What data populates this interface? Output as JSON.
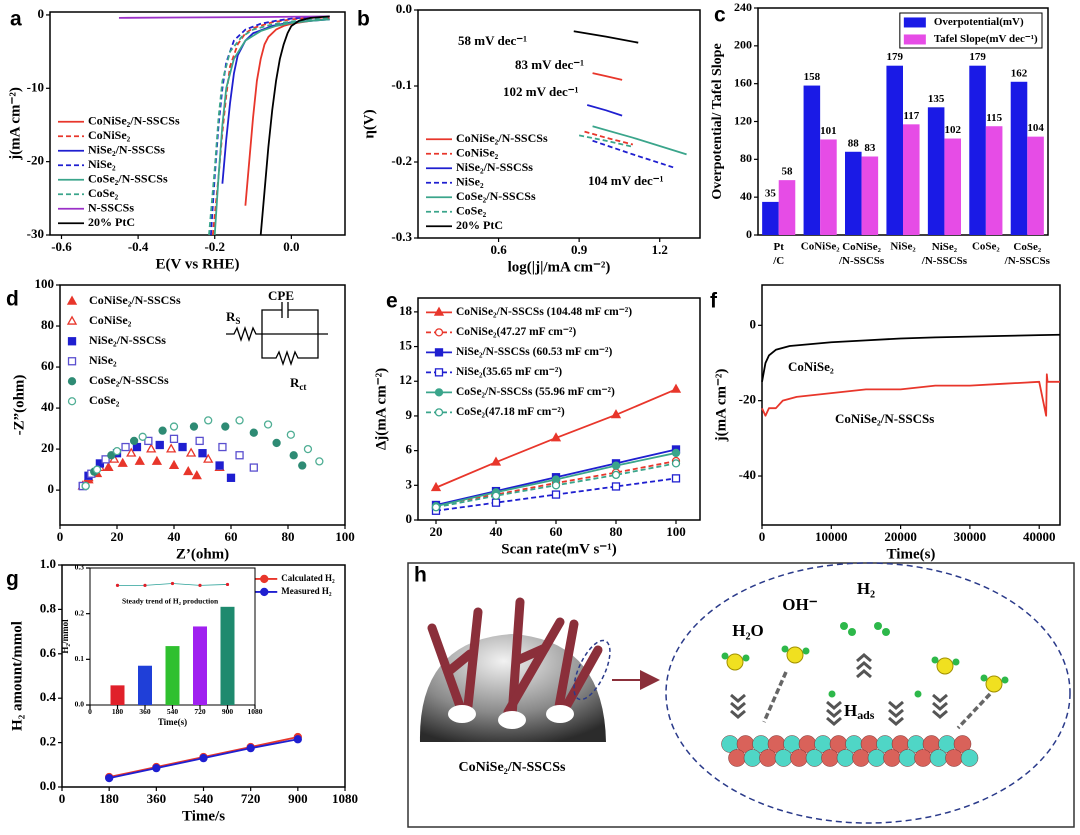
{
  "chart_data": [
    {
      "panel": "a",
      "type": "line",
      "xlabel": "E(V vs RHE)",
      "ylabel": "j(mA cm⁻²)",
      "xlim": [
        -0.63,
        0.14
      ],
      "ylim": [
        -30,
        0.4
      ],
      "xticks": [
        -0.6,
        -0.4,
        -0.2,
        {
          "value": 0,
          "label": "0.0"
        }
      ],
      "yticks": [
        -30,
        -20,
        -10,
        0
      ],
      "legend": "lower left",
      "series": [
        {
          "name": "CoNiSe₂/N-SSCSs",
          "color": "#e8362b",
          "dash": false,
          "x": [
            -0.12,
            -0.11,
            -0.1,
            -0.09,
            -0.08,
            -0.07,
            -0.06,
            -0.04,
            -0.02,
            0,
            0.05,
            0.1
          ],
          "values": [
            -26,
            -20,
            -14,
            -9,
            -6,
            -4,
            -3,
            -2,
            -1.5,
            -1.2,
            -0.8,
            -0.5
          ]
        },
        {
          "name": "CoNiSe₂",
          "color": "#e8362b",
          "dash": true,
          "x": [
            -0.205,
            -0.19,
            -0.18,
            -0.17,
            -0.16,
            -0.14,
            -0.12,
            -0.1,
            -0.05,
            0,
            0.05,
            0.1
          ],
          "values": [
            -30,
            -22,
            -16,
            -11,
            -7,
            -4,
            -2.5,
            -1.8,
            -1,
            -0.6,
            -0.4,
            -0.3
          ]
        },
        {
          "name": "NiSe₂/N-SSCSs",
          "color": "#1f1fd0",
          "dash": false,
          "x": [
            -0.18,
            -0.17,
            -0.16,
            -0.15,
            -0.14,
            -0.12,
            -0.1,
            -0.05,
            0,
            0.05,
            0.1
          ],
          "values": [
            -23,
            -17,
            -12,
            -8,
            -5.5,
            -3.5,
            -2.5,
            -1.5,
            -1,
            -0.8,
            -0.6
          ]
        },
        {
          "name": "NiSe₂",
          "color": "#1f1fd0",
          "dash": true,
          "x": [
            -0.21,
            -0.2,
            -0.19,
            -0.18,
            -0.17,
            -0.15,
            -0.12,
            -0.08,
            -0.04,
            0,
            0.05,
            0.1
          ],
          "values": [
            -30,
            -22,
            -15,
            -10,
            -6.5,
            -3.5,
            -2,
            -1.2,
            -0.8,
            -0.5,
            -0.3,
            -0.2
          ]
        },
        {
          "name": "CoSe₂/N-SSCSs",
          "color": "#3aa58b",
          "dash": false,
          "x": [
            -0.2,
            -0.19,
            -0.18,
            -0.17,
            -0.15,
            -0.12,
            -0.08,
            -0.04,
            0,
            0.05,
            0.1
          ],
          "values": [
            -30,
            -22,
            -15,
            -10,
            -6,
            -3.5,
            -2.2,
            -1.5,
            -1.1,
            -0.8,
            -0.6
          ]
        },
        {
          "name": "CoSe₂",
          "color": "#3aa58b",
          "dash": true,
          "x": [
            -0.215,
            -0.2,
            -0.19,
            -0.18,
            -0.16,
            -0.13,
            -0.1,
            -0.05,
            0,
            0.05,
            0.1
          ],
          "values": [
            -30,
            -21,
            -14,
            -9,
            -5,
            -3,
            -2,
            -1.3,
            -0.9,
            -0.6,
            -0.4
          ]
        },
        {
          "name": "N-SSCSs",
          "color": "#9b30c8",
          "dash": false,
          "x": [
            -0.45,
            -0.3,
            -0.1,
            0,
            0.1
          ],
          "values": [
            -0.4,
            -0.35,
            -0.3,
            -0.25,
            -0.2
          ]
        },
        {
          "name": "20% PtC",
          "color": "#000000",
          "dash": false,
          "x": [
            -0.08,
            -0.07,
            -0.06,
            -0.05,
            -0.04,
            -0.03,
            -0.02,
            -0.01,
            0,
            0.02,
            0.05,
            0.1
          ],
          "values": [
            -30,
            -24,
            -18,
            -13,
            -9,
            -6,
            -4,
            -2.5,
            -1.5,
            -0.8,
            -0.4,
            -0.2
          ]
        }
      ]
    },
    {
      "panel": "b",
      "type": "line",
      "xlabel": "log(|j|/mA cm⁻²)",
      "ylabel": "η(V)",
      "xlim": [
        0.3,
        1.35
      ],
      "ylim": [
        -0.3,
        0
      ],
      "xticks": [
        0.6,
        0.9,
        1.2
      ],
      "yticks": [
        -0.3,
        -0.2,
        -0.1,
        {
          "value": 0,
          "label": "0.0"
        }
      ],
      "legend": "lower left",
      "annotations": [
        {
          "text": "58 mV dec⁻¹",
          "color": "#000000"
        },
        {
          "text": "83 mV dec⁻¹",
          "color": "#e8362b"
        },
        {
          "text": "102 mV dec⁻¹",
          "color": "#1f1fd0"
        },
        {
          "text": "104 mV dec⁻¹",
          "color": "#3aa58b"
        }
      ],
      "series": [
        {
          "name": "CoNiSe₂/N-SSCSs",
          "color": "#e8362b",
          "dash": false,
          "x": [
            0.95,
            1.0,
            1.06
          ],
          "values": [
            -0.083,
            -0.087,
            -0.092
          ]
        },
        {
          "name": "CoNiSe₂",
          "color": "#e8362b",
          "dash": true,
          "x": [
            0.92,
            1.0,
            1.1
          ],
          "values": [
            -0.16,
            -0.168,
            -0.177
          ]
        },
        {
          "name": "NiSe₂/N-SSCSs",
          "color": "#1f1fd0",
          "dash": false,
          "x": [
            0.93,
            1.0,
            1.06
          ],
          "values": [
            -0.125,
            -0.132,
            -0.139
          ]
        },
        {
          "name": "NiSe₂",
          "color": "#1f1fd0",
          "dash": true,
          "x": [
            0.95,
            1.1,
            1.25
          ],
          "values": [
            -0.172,
            -0.19,
            -0.207
          ]
        },
        {
          "name": "CoSe₂/N-SSCSs",
          "color": "#3aa58b",
          "dash": false,
          "x": [
            0.95,
            1.1,
            1.3
          ],
          "values": [
            -0.153,
            -0.168,
            -0.19
          ]
        },
        {
          "name": "CoSe₂",
          "color": "#3aa58b",
          "dash": true,
          "x": [
            0.9,
            1.0,
            1.1
          ],
          "values": [
            -0.165,
            -0.172,
            -0.18
          ]
        },
        {
          "name": "20% PtC",
          "color": "#000000",
          "dash": false,
          "x": [
            0.88,
            1.0,
            1.12
          ],
          "values": [
            -0.028,
            -0.035,
            -0.043
          ]
        }
      ]
    },
    {
      "panel": "c",
      "type": "bar",
      "ylabel": "Overpotential/ Tafel Slope",
      "categories": [
        "Pt/C",
        "CoNiSe₂",
        "CoNiSe₂/N-SSCSs",
        "NiSe₂",
        "NiSe₂/N-SSCSs",
        "CoSe₂",
        "CoSe₂/N-SSCSs"
      ],
      "ylim": [
        0,
        240
      ],
      "yticks": [
        0,
        40,
        80,
        120,
        160,
        200,
        240
      ],
      "legend": "upper right",
      "series": [
        {
          "name": "Overpotential(mV)",
          "color": "#1a1ae6",
          "values": [
            35,
            158,
            88,
            179,
            135,
            179,
            162
          ]
        },
        {
          "name": "Tafel Slope(mV dec⁻¹)",
          "color": "#e64ce6",
          "values": [
            58,
            101,
            83,
            117,
            102,
            115,
            104
          ]
        }
      ]
    },
    {
      "panel": "d",
      "type": "scatter",
      "xlabel": "Z’(ohm)",
      "ylabel": "-Z”(ohm)",
      "xlim": [
        0,
        100
      ],
      "ylim": [
        -17,
        100
      ],
      "xticks": [
        0,
        20,
        40,
        60,
        80,
        100
      ],
      "yticks": [
        0,
        20,
        40,
        60,
        80,
        100
      ],
      "legend": "upper left",
      "annotations": [
        {
          "text": "CPE",
          "color": "#000000"
        },
        {
          "text": "RS",
          "color": "#000000"
        },
        {
          "text": "Rct",
          "color": "#000000"
        }
      ],
      "series": [
        {
          "name": "CoNiSe₂/N-SSCSs",
          "color": "#e8362b",
          "marker": "triangle",
          "filled": true,
          "x": [
            8,
            10,
            13,
            17,
            22,
            28,
            34,
            40,
            45,
            48
          ],
          "values": [
            2,
            5,
            8,
            11,
            13,
            14,
            14,
            12,
            9,
            7
          ]
        },
        {
          "name": "CoNiSe₂",
          "color": "#e8362b",
          "marker": "triangle",
          "filled": false,
          "x": [
            8,
            10,
            14,
            19,
            25,
            32,
            39,
            46,
            52,
            56
          ],
          "values": [
            2,
            6,
            11,
            15,
            18,
            20,
            20,
            18,
            15,
            11
          ]
        },
        {
          "name": "NiSe₂/N-SSCSs",
          "color": "#1f1fd0",
          "marker": "square",
          "filled": true,
          "x": [
            8,
            10,
            14,
            20,
            27,
            35,
            43,
            50,
            56,
            60
          ],
          "values": [
            2,
            7,
            13,
            18,
            21,
            22,
            21,
            18,
            12,
            6
          ]
        },
        {
          "name": "NiSe₂",
          "color": "#5a4fcf",
          "marker": "square",
          "filled": false,
          "x": [
            8,
            11,
            16,
            23,
            31,
            40,
            49,
            57,
            63,
            68
          ],
          "values": [
            2,
            8,
            15,
            21,
            24,
            25,
            24,
            21,
            17,
            11
          ]
        },
        {
          "name": "CoSe₂/N-SSCSs",
          "color": "#2e8b74",
          "marker": "circle",
          "filled": true,
          "x": [
            9,
            12,
            18,
            26,
            36,
            47,
            58,
            68,
            76,
            82,
            85
          ],
          "values": [
            2,
            9,
            17,
            24,
            29,
            31,
            31,
            28,
            23,
            17,
            12
          ]
        },
        {
          "name": "CoSe₂",
          "color": "#4fae94",
          "marker": "circle",
          "filled": false,
          "x": [
            9,
            13,
            20,
            29,
            40,
            52,
            63,
            73,
            81,
            87,
            91
          ],
          "values": [
            2,
            10,
            19,
            26,
            31,
            34,
            34,
            32,
            27,
            20,
            14
          ]
        }
      ]
    },
    {
      "panel": "e",
      "type": "line",
      "xlabel": "Scan rate(mV s⁻¹)",
      "ylabel": "Δj(mA cm⁻²)",
      "xlim": [
        14,
        108
      ],
      "ylim": [
        0,
        19.2
      ],
      "xticks": [
        20,
        40,
        60,
        80,
        100
      ],
      "yticks": [
        0,
        3,
        6,
        9,
        12,
        15,
        18
      ],
      "legend": "upper left",
      "x": [
        20,
        40,
        60,
        80,
        100
      ],
      "series": [
        {
          "name": "CoNiSe₂/N-SSCSs (104.48 mF cm⁻²)",
          "color": "#e8362b",
          "dash": false,
          "marker": "triangle",
          "filled": true,
          "values": [
            2.8,
            5.0,
            7.1,
            9.1,
            11.3
          ]
        },
        {
          "name": "CoNiSe₂(47.27 mF cm⁻²)",
          "color": "#e8362b",
          "dash": true,
          "marker": "circle",
          "filled": false,
          "values": [
            1.3,
            2.2,
            3.2,
            4.1,
            5.1
          ]
        },
        {
          "name": "NiSe₂/N-SSCSs (60.53 mF cm⁻²)",
          "color": "#1f1fd0",
          "dash": false,
          "marker": "square",
          "filled": true,
          "values": [
            1.3,
            2.5,
            3.7,
            4.9,
            6.1
          ]
        },
        {
          "name": "NiSe₂(35.65 mF cm⁻²)",
          "color": "#1f1fd0",
          "dash": true,
          "marker": "square",
          "filled": false,
          "values": [
            0.8,
            1.5,
            2.2,
            2.9,
            3.6
          ]
        },
        {
          "name": "CoSe₂/N-SSCSs (55.96 mF cm⁻²)",
          "color": "#3aa58b",
          "dash": false,
          "marker": "circle",
          "filled": true,
          "values": [
            1.2,
            2.4,
            3.5,
            4.7,
            5.8
          ]
        },
        {
          "name": "CoSe₂(47.18 mF cm⁻²)",
          "color": "#3aa58b",
          "dash": true,
          "marker": "circle",
          "filled": false,
          "values": [
            1.1,
            2.1,
            3.0,
            3.9,
            4.9
          ]
        }
      ]
    },
    {
      "panel": "f",
      "type": "line",
      "xlabel": "Time(s)",
      "ylabel": "j(mA cm⁻²)",
      "xlim": [
        0,
        43000
      ],
      "ylim": [
        -53,
        10.7
      ],
      "xticks": [
        0,
        10000,
        20000,
        30000,
        40000
      ],
      "yticks": [
        -40,
        -20,
        0
      ],
      "annotations": [
        {
          "text": "CoNiSe₂",
          "color": "#000000"
        },
        {
          "text": "CoNiSe₂/N-SSCSs",
          "color": "#e8362b"
        }
      ],
      "series": [
        {
          "color": "#000000",
          "dash": false,
          "x": [
            0,
            500,
            1000,
            2000,
            4000,
            7000,
            10000,
            15000,
            20000,
            25000,
            30000,
            35000,
            40000,
            43000
          ],
          "values": [
            -15,
            -10,
            -8,
            -6.5,
            -5.5,
            -5,
            -4.5,
            -4,
            -3.5,
            -3.2,
            -3,
            -2.8,
            -2.6,
            -2.5
          ]
        },
        {
          "color": "#e8362b",
          "dash": false,
          "x": [
            0,
            500,
            1000,
            2000,
            3000,
            5000,
            10000,
            15000,
            20000,
            25000,
            30000,
            35000,
            40000,
            41000,
            41100,
            41200,
            43000
          ],
          "values": [
            -22,
            -24,
            -22,
            -22,
            -20,
            -19,
            -18,
            -17,
            -17,
            -16,
            -16,
            -15.5,
            -15,
            -24,
            -13,
            -15,
            -15
          ]
        }
      ]
    },
    {
      "panel": "g",
      "type": "line",
      "xlabel": "Time/s",
      "ylabel": "H₂ amount/mmol",
      "xlim": [
        0,
        1080
      ],
      "ylim": [
        0,
        1
      ],
      "xticks": [
        0,
        180,
        360,
        540,
        720,
        900,
        1080
      ],
      "yticks": [
        {
          "value": 0,
          "label": "0.0"
        },
        0.2,
        0.4,
        0.6,
        0.8,
        {
          "value": 1,
          "label": "1.0"
        }
      ],
      "legend": "upper right",
      "x": [
        180,
        360,
        540,
        720,
        900
      ],
      "series": [
        {
          "name": "Calculated H₂",
          "color": "#e8362b",
          "dash": false,
          "marker": "circle",
          "filled": true,
          "values": [
            0.045,
            0.09,
            0.135,
            0.18,
            0.225
          ]
        },
        {
          "name": "Measured H₂",
          "color": "#1f1fd0",
          "dash": false,
          "marker": "circle",
          "filled": true,
          "values": [
            0.04,
            0.085,
            0.13,
            0.175,
            0.215
          ]
        }
      ]
    },
    {
      "type": "bar",
      "xlabel": "Time(s)",
      "ylabel": "H₂/mmol",
      "xlim": [
        0,
        1080
      ],
      "ylim": [
        0,
        0.3
      ],
      "xticks": [
        0,
        180,
        360,
        540,
        720,
        900,
        1080
      ],
      "yticks": [
        {
          "value": 0,
          "label": "0.0"
        },
        0.1,
        0.2,
        0.3
      ],
      "x": [
        180,
        360,
        540,
        720,
        900
      ],
      "values": [
        0.043,
        0.086,
        0.129,
        0.172,
        0.215
      ],
      "colors": [
        "#e0202a",
        "#1f3fd8",
        "#2fc02f",
        "#a020f0",
        "#1e8a6e"
      ],
      "trend": {
        "color": "#2aa198",
        "values": [
          0.262,
          0.262,
          0.266,
          0.262,
          0.264
        ]
      },
      "annotations": [
        {
          "text": "Steady trend of H₂ production",
          "color": "#e0202a"
        }
      ]
    }
  ],
  "diagram": {
    "panel": "h",
    "labels": {
      "material": "CoNiSe₂/N-SSCSs",
      "water": "H₂O",
      "hydroxide": "OH⁻",
      "hydrogen": "H₂",
      "adsorbed": "Hads"
    }
  }
}
